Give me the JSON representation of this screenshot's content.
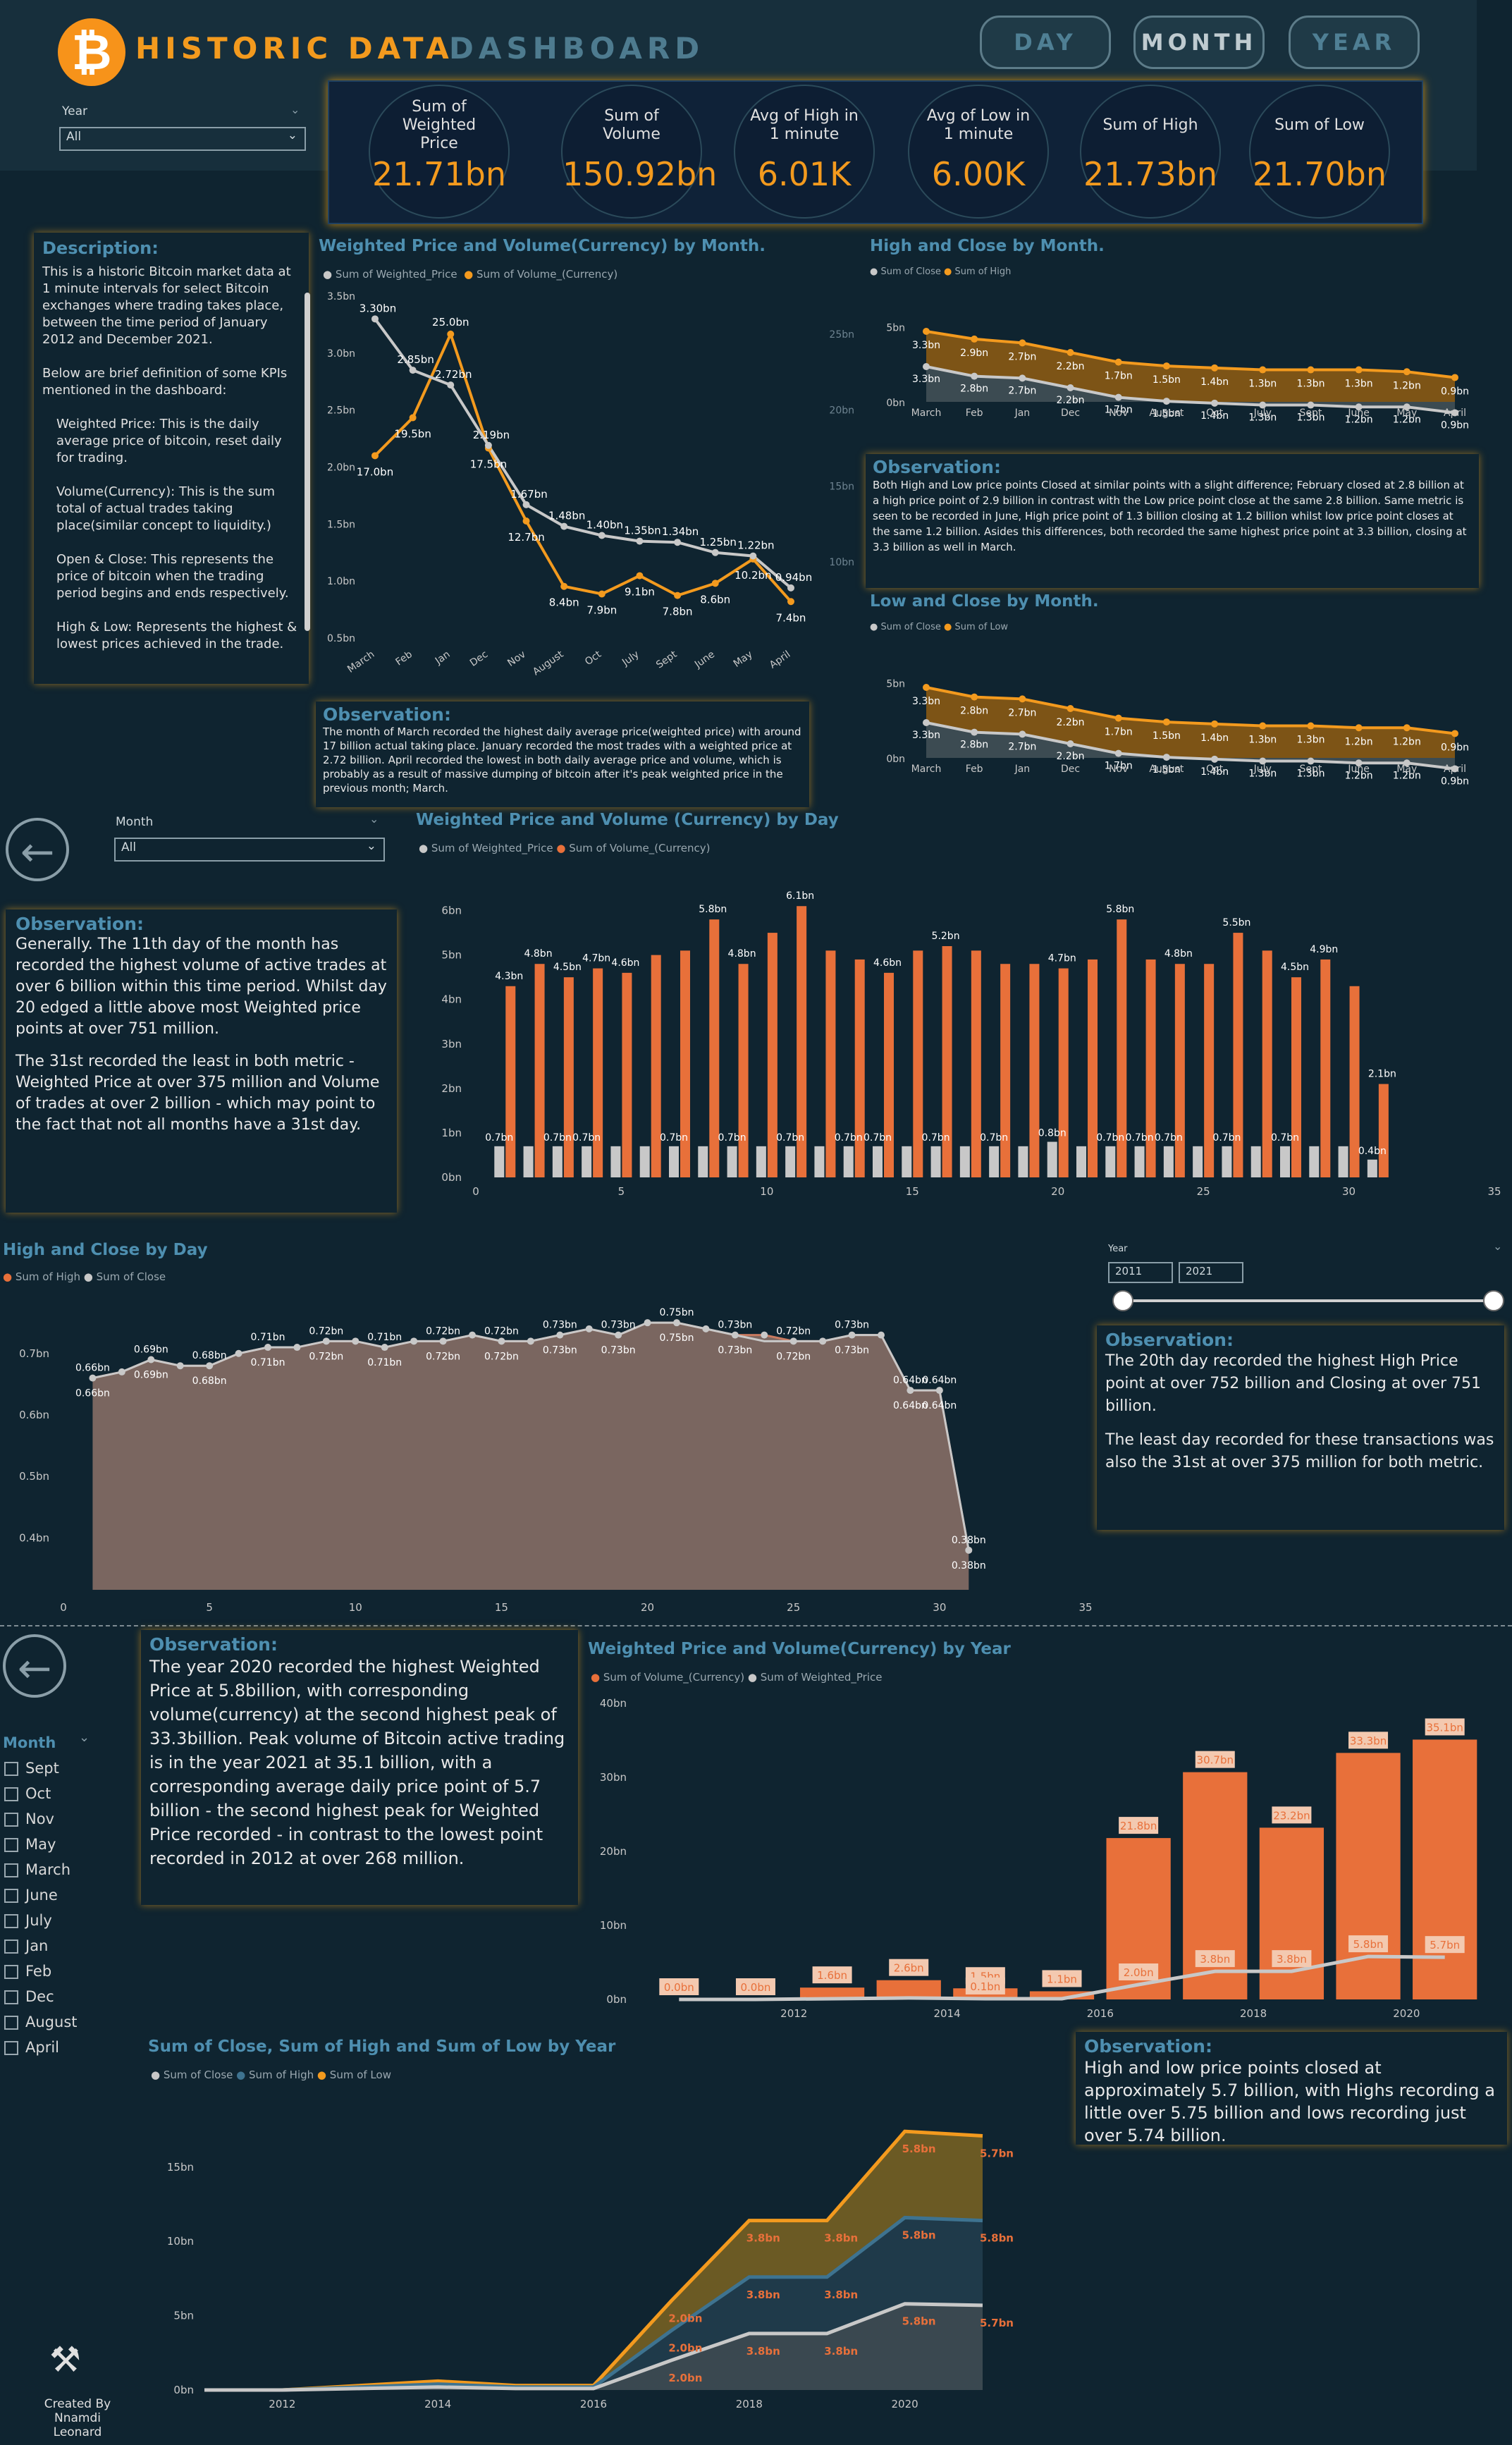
{
  "header": {
    "logo_glyph": "₿",
    "title_part1": "HISTORIC DATA",
    "title_part2": "DASHBOARD",
    "nav": [
      "DAY",
      "MONTH",
      "YEAR"
    ],
    "active_nav": "MONTH"
  },
  "year_slicer": {
    "label": "Year",
    "value": "All"
  },
  "kpis": [
    {
      "label": "Sum of Weighted Price",
      "value": "21.71bn"
    },
    {
      "label": "Sum of Volume",
      "value": "150.92bn"
    },
    {
      "label": "Avg of High in 1 minute",
      "value": "6.01K"
    },
    {
      "label": "Avg of Low in 1 minute",
      "value": "6.00K"
    },
    {
      "label": "Sum of High",
      "value": "21.73bn"
    },
    {
      "label": "Sum of Low",
      "value": "21.70bn"
    }
  ],
  "description": {
    "title": "Description:",
    "paragraphs": [
      "This is a historic Bitcoin market data at 1 minute intervals for select Bitcoin exchanges where trading takes place, between the time period of January 2012 and December 2021.",
      "Below are brief definition of some KPIs mentioned in the dashboard:",
      "Weighted Price: This is the daily average price of bitcoin, reset daily for trading.",
      "Volume(Currency): This is the sum total of actual trades taking place(similar concept to liquidity.)",
      "Open & Close: This represents the price of bitcoin when the trading period begins and ends respectively.",
      "High & Low: Represents the highest & lowest prices achieved in the trade."
    ]
  },
  "observations": {
    "month_weighted": {
      "title": "Observation:",
      "text": "The month of March recorded the highest daily average price(weighted price) with around 17 billion actual taking place. January recorded the most trades with a weighted price at 2.72 billion. April recorded the lowest in both daily average price and volume, which is probably as a result of massive dumping of bitcoin after it's peak weighted price in the previous month; March."
    },
    "month_high_close": {
      "title": "Observation:",
      "text": "Both High and Low price points Closed at similar points with a slight difference; February closed at 2.8 billion at a high price point of 2.9 billion in contrast with the Low price point close at the same 2.8 billion.  Same metric is seen to be recorded in June, High price point of 1.3 billion closing at 1.2 billion whilst low price point closes at the same 1.2 billion. Asides this differences, both recorded the same highest price point at 3.3 billion, closing at 3.3 billion as well in March."
    },
    "day_volume": {
      "title": "Observation:",
      "text1": "Generally. The 11th day of the month has recorded the highest volume of active trades at over 6 billion within this time period. Whilst day 20 edged a little above most Weighted price points at over 751 million.",
      "text2": "The 31st recorded the least in both metric - Weighted Price at over 375 million and  Volume of trades at over 2 billion - which may point to the fact that not all months have a 31st day."
    },
    "day_high_close": {
      "title": "Observation:",
      "text1": "The 20th day recorded the highest High Price point at over 752 billion and Closing at over 751 billion.",
      "text2": "The least day recorded for these transactions was also the 31st at over 375 million for both metric."
    },
    "year_weighted": {
      "title": "Observation:",
      "text": "The year 2020 recorded the highest Weighted Price at 5.8billion, with corresponding  volume(currency) at the second highest peak of 33.3billion. Peak volume of Bitcoin active trading is in the year 2021 at 35.1 billion, with a corresponding average daily price point of 5.7 billion - the second highest peak for Weighted Price recorded - in contrast to the lowest point recorded in 2012 at over 268 million."
    },
    "year_high_low": {
      "title": "Observation:",
      "text": "High and low price points closed at approximately 5.7 billion, with Highs recording a little over 5.75 billion and lows recording just over 5.74 billion."
    }
  },
  "month_slicer": {
    "label": "Month",
    "value": "All"
  },
  "year_range": {
    "label": "Year",
    "from": "2011",
    "to": "2021"
  },
  "month_list": {
    "label": "Month",
    "items": [
      "Sept",
      "Oct",
      "Nov",
      "May",
      "March",
      "June",
      "July",
      "Jan",
      "Feb",
      "Dec",
      "August",
      "April"
    ]
  },
  "credit": {
    "line1": "Created By",
    "line2": "Nnamdi Leonard"
  },
  "colors": {
    "orange": "#f39a1e",
    "orange_bar": "#e8703a",
    "grey": "#c8c8c8",
    "blue": "#3e7390",
    "bg": "#0f2430"
  },
  "chart_data": [
    {
      "id": "weighted_volume_month",
      "type": "line",
      "title": "Weighted Price and Volume(Currency) by Month.",
      "categories": [
        "March",
        "Feb",
        "Jan",
        "Dec",
        "Nov",
        "August",
        "Oct",
        "July",
        "Sept",
        "June",
        "May",
        "April"
      ],
      "series": [
        {
          "name": "Sum of Weighted_Price",
          "axis": "left",
          "values": [
            3.3,
            2.85,
            2.72,
            2.19,
            1.67,
            1.48,
            1.4,
            1.35,
            1.34,
            1.25,
            1.22,
            0.94
          ],
          "labels": [
            "3.30bn",
            "2.85bn",
            "2.72bn",
            "2.19bn",
            "1.67bn",
            "1.48bn",
            "1.40bn",
            "1.35bn",
            "1.34bn",
            "1.25bn",
            "1.22bn",
            "0.94bn"
          ]
        },
        {
          "name": "Sum of Volume_(Currency)",
          "axis": "right",
          "values": [
            17.0,
            19.5,
            25.0,
            17.5,
            12.7,
            8.4,
            7.9,
            9.1,
            7.8,
            8.6,
            10.2,
            7.4
          ],
          "labels": [
            "17.0bn",
            "19.5bn",
            "25.0bn",
            "17.5bn",
            "12.7bn",
            "8.4bn",
            "7.9bn",
            "9.1bn",
            "7.8bn",
            "8.6bn",
            "10.2bn",
            "7.4bn"
          ]
        }
      ],
      "y_left": {
        "ticks": [
          "0.5bn",
          "1.0bn",
          "1.5bn",
          "2.0bn",
          "2.5bn",
          "3.0bn",
          "3.5bn"
        ],
        "range": [
          0.5,
          3.5
        ]
      },
      "y_right": {
        "ticks": [
          "10bn",
          "15bn",
          "20bn",
          "25bn"
        ],
        "range": [
          5,
          27.5
        ]
      }
    },
    {
      "id": "high_close_month",
      "type": "area",
      "title": "High and Close by Month.",
      "categories": [
        "March",
        "Feb",
        "Jan",
        "Dec",
        "Nov",
        "August",
        "Oct",
        "July",
        "Sept",
        "June",
        "May",
        "April"
      ],
      "series": [
        {
          "name": "Sum of Close",
          "values": [
            3.3,
            2.8,
            2.7,
            2.2,
            1.7,
            1.5,
            1.4,
            1.3,
            1.3,
            1.2,
            1.2,
            0.9
          ]
        },
        {
          "name": "Sum of High",
          "values": [
            3.3,
            2.9,
            2.7,
            2.2,
            1.7,
            1.5,
            1.4,
            1.3,
            1.3,
            1.3,
            1.2,
            0.9
          ]
        }
      ],
      "y_ticks": [
        "0bn",
        "5bn"
      ]
    },
    {
      "id": "low_close_month",
      "type": "area",
      "title": "Low and Close by Month.",
      "categories": [
        "March",
        "Feb",
        "Jan",
        "Dec",
        "Nov",
        "August",
        "Oct",
        "July",
        "Sept",
        "June",
        "May",
        "April"
      ],
      "series": [
        {
          "name": "Sum of Close",
          "values": [
            3.3,
            2.8,
            2.7,
            2.2,
            1.7,
            1.5,
            1.4,
            1.3,
            1.3,
            1.2,
            1.2,
            0.9
          ]
        },
        {
          "name": "Sum of Low",
          "values": [
            3.3,
            2.8,
            2.7,
            2.2,
            1.7,
            1.5,
            1.4,
            1.3,
            1.3,
            1.2,
            1.2,
            0.9
          ]
        }
      ],
      "y_ticks": [
        "0bn",
        "5bn"
      ]
    },
    {
      "id": "weighted_volume_day",
      "type": "bar",
      "title": "Weighted Price and Volume (Currency) by Day",
      "x": [
        1,
        2,
        3,
        4,
        5,
        6,
        7,
        8,
        9,
        10,
        11,
        12,
        13,
        14,
        15,
        16,
        17,
        18,
        19,
        20,
        21,
        22,
        23,
        24,
        25,
        26,
        27,
        28,
        29,
        30,
        31
      ],
      "series": [
        {
          "name": "Sum of Weighted_Price",
          "values": [
            0.7,
            0.7,
            0.7,
            0.7,
            0.7,
            0.7,
            0.7,
            0.7,
            0.7,
            0.7,
            0.7,
            0.7,
            0.7,
            0.7,
            0.7,
            0.7,
            0.7,
            0.7,
            0.7,
            0.8,
            0.7,
            0.7,
            0.7,
            0.7,
            0.7,
            0.7,
            0.7,
            0.7,
            0.7,
            0.7,
            0.4
          ],
          "labels": [
            "0.7bn",
            "",
            "0.7bn",
            "0.7bn",
            "",
            "",
            "0.7bn",
            "",
            "0.7bn",
            "",
            "0.7bn",
            "",
            "0.7bn",
            "0.7bn",
            "",
            "0.7bn",
            "",
            "0.7bn",
            "",
            "0.8bn",
            "",
            "0.7bn",
            "0.7bn",
            "0.7bn",
            "",
            "0.7bn",
            "",
            "0.7bn",
            "",
            "",
            "0.4bn"
          ]
        },
        {
          "name": "Sum of Volume_(Currency)",
          "values": [
            4.3,
            4.8,
            4.5,
            4.7,
            4.6,
            5.0,
            5.1,
            5.8,
            4.8,
            5.5,
            6.1,
            5.1,
            4.9,
            4.6,
            5.1,
            5.2,
            5.1,
            4.8,
            4.8,
            4.7,
            4.9,
            5.8,
            4.9,
            4.8,
            4.8,
            5.5,
            5.1,
            4.5,
            4.9,
            4.3,
            2.1
          ],
          "labels": [
            "4.3bn",
            "4.8bn",
            "4.5bn",
            "4.7bn",
            "4.6bn",
            "",
            "",
            "5.8bn",
            "4.8bn",
            "",
            "6.1bn",
            "",
            "",
            "4.6bn",
            "",
            "5.2bn",
            "",
            "",
            "",
            "4.7bn",
            "",
            "5.8bn",
            "",
            "4.8bn",
            "",
            "5.5bn",
            "",
            "4.5bn",
            "4.9bn",
            "",
            "2.1bn"
          ]
        }
      ],
      "y_ticks": [
        "0bn",
        "1bn",
        "2bn",
        "3bn",
        "4bn",
        "5bn",
        "6bn"
      ],
      "x_ticks": [
        "0",
        "5",
        "10",
        "15",
        "20",
        "25",
        "30",
        "35"
      ]
    },
    {
      "id": "high_close_day",
      "type": "area",
      "title": "High and Close by Day",
      "x": [
        1,
        2,
        3,
        4,
        5,
        6,
        7,
        8,
        9,
        10,
        11,
        12,
        13,
        14,
        15,
        16,
        17,
        18,
        19,
        20,
        21,
        22,
        23,
        24,
        25,
        26,
        27,
        28,
        29,
        30,
        31
      ],
      "series": [
        {
          "name": "Sum of High",
          "values": [
            0.66,
            0.67,
            0.69,
            0.68,
            0.68,
            0.7,
            0.71,
            0.71,
            0.72,
            0.72,
            0.71,
            0.72,
            0.72,
            0.73,
            0.72,
            0.72,
            0.73,
            0.74,
            0.73,
            0.75,
            0.75,
            0.74,
            0.73,
            0.73,
            0.72,
            0.72,
            0.73,
            0.73,
            0.64,
            0.64,
            0.38
          ]
        },
        {
          "name": "Sum of Close",
          "values": [
            0.66,
            0.67,
            0.69,
            0.68,
            0.68,
            0.7,
            0.71,
            0.71,
            0.72,
            0.72,
            0.71,
            0.72,
            0.72,
            0.73,
            0.72,
            0.72,
            0.73,
            0.74,
            0.73,
            0.75,
            0.75,
            0.74,
            0.73,
            0.72,
            0.72,
            0.72,
            0.73,
            0.73,
            0.64,
            0.64,
            0.38
          ]
        }
      ],
      "y_ticks": [
        "0.4bn",
        "0.5bn",
        "0.6bn",
        "0.7bn"
      ],
      "x_ticks": [
        "0",
        "5",
        "10",
        "15",
        "20",
        "25",
        "30",
        "35"
      ]
    },
    {
      "id": "weighted_volume_year",
      "type": "bar",
      "title": "Weighted Price and Volume(Currency) by Year",
      "x": [
        2011,
        2012,
        2013,
        2014,
        2015,
        2016,
        2017,
        2018,
        2019,
        2020,
        2021
      ],
      "series": [
        {
          "name": "Sum of Volume_(Currency)",
          "values": [
            0.0,
            0.0,
            1.6,
            2.6,
            1.5,
            1.1,
            21.8,
            30.7,
            23.2,
            33.3,
            35.1
          ],
          "labels": [
            "0.0bn",
            "0.0bn",
            "1.6bn",
            "2.6bn",
            "1.5bn",
            "1.1bn",
            "21.8bn",
            "30.7bn",
            "23.2bn",
            "33.3bn",
            "35.1bn"
          ]
        },
        {
          "name": "Sum of Weighted_Price",
          "values": [
            0.0,
            0.0,
            0.1,
            0.2,
            0.1,
            0.1,
            2.0,
            3.8,
            3.8,
            5.8,
            5.7
          ],
          "labels": [
            "",
            "",
            "",
            "",
            "0.1bn",
            "",
            "2.0bn",
            "3.8bn",
            "3.8bn",
            "5.8bn",
            "5.7bn"
          ]
        }
      ],
      "y_ticks": [
        "0bn",
        "10bn",
        "20bn",
        "30bn",
        "40bn"
      ],
      "x_ticks": [
        "2012",
        "2014",
        "2016",
        "2018",
        "2020"
      ]
    },
    {
      "id": "close_high_low_year",
      "type": "area",
      "title": "Sum of Close, Sum of High and Sum of Low by Year",
      "x": [
        2011,
        2012,
        2013,
        2014,
        2015,
        2016,
        2017,
        2018,
        2019,
        2020,
        2021
      ],
      "series": [
        {
          "name": "Sum of Close",
          "values": [
            0.0,
            0.0,
            0.1,
            0.2,
            0.1,
            0.1,
            2.0,
            3.8,
            3.8,
            5.8,
            5.7
          ]
        },
        {
          "name": "Sum of High",
          "values": [
            0.0,
            0.0,
            0.2,
            0.4,
            0.2,
            0.2,
            4.0,
            7.6,
            7.6,
            11.6,
            11.4
          ]
        },
        {
          "name": "Sum of Low",
          "values": [
            0.0,
            0.0,
            0.3,
            0.6,
            0.3,
            0.3,
            6.0,
            11.4,
            11.4,
            17.4,
            17.1
          ]
        }
      ],
      "point_labels": {
        "close": [
          "",
          "",
          "",
          "",
          "",
          "",
          "2.0bn",
          "3.8bn",
          "3.8bn",
          "5.8bn",
          "5.7bn"
        ],
        "high": [
          "",
          "",
          "",
          "",
          "",
          "",
          "2.0bn",
          "3.8bn",
          "3.8bn",
          "5.8bn",
          "5.8bn"
        ],
        "low": [
          "",
          "",
          "",
          "",
          "",
          "",
          "2.0bn",
          "3.8bn",
          "3.8bn",
          "5.8bn",
          "5.7bn"
        ]
      },
      "y_ticks": [
        "0bn",
        "5bn",
        "10bn",
        "15bn"
      ],
      "x_ticks": [
        "2012",
        "2014",
        "2016",
        "2018",
        "2020"
      ]
    }
  ]
}
